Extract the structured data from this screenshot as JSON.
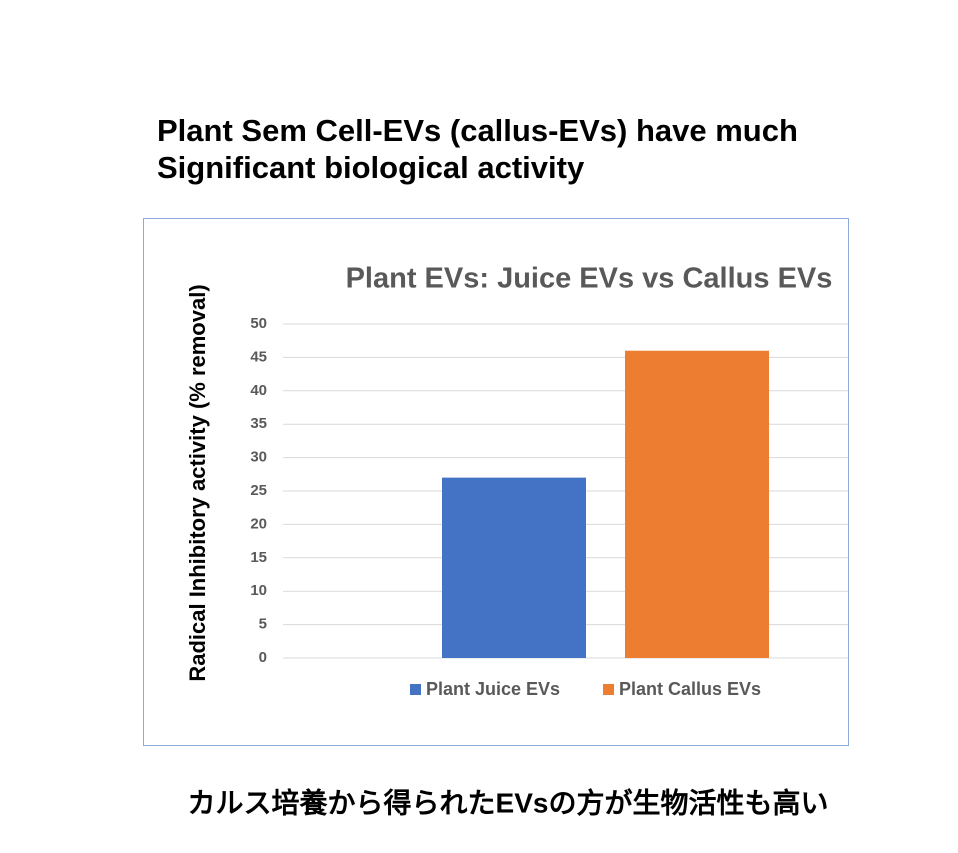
{
  "header": {
    "title_lines": [
      "Plant Sem Cell-EVs (callus-EVs) have much",
      "Significant biological activity"
    ]
  },
  "chart_data": {
    "type": "bar",
    "title": "Plant EVs: Juice EVs vs Callus EVs",
    "ylabel": "Radical Inhibitory activity (% removal)",
    "categories": [
      null
    ],
    "series": [
      {
        "name": "Plant Juice EVs",
        "color": "#4472c4",
        "values": [
          27
        ]
      },
      {
        "name": "Plant Callus EVs",
        "color": "#ed7d31",
        "values": [
          46
        ]
      }
    ],
    "ylim": [
      0,
      50
    ],
    "yticks": [
      0,
      5,
      10,
      15,
      20,
      25,
      30,
      35,
      40,
      45,
      50
    ],
    "grid": true,
    "legend": "bottom"
  },
  "footer": {
    "caption": "カルス培養から得られたEVsの方が生物活性も高い"
  }
}
